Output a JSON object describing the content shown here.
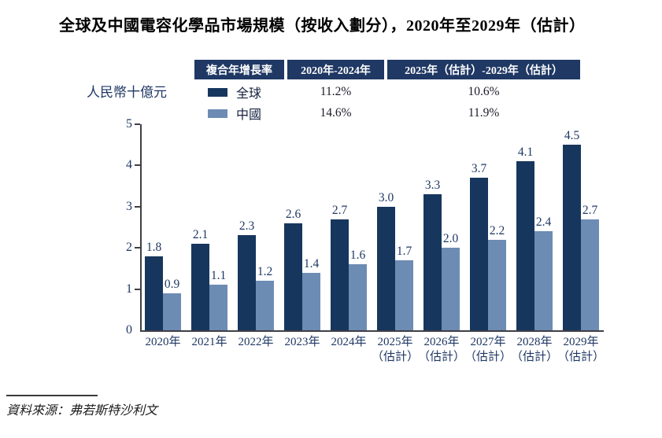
{
  "page": {
    "title": "全球及中國電容化學品市場規模（按收入劃分），2020年至2029年（估計）",
    "source": "資料來源：弗若斯特沙利文"
  },
  "cagr_table": {
    "header": [
      "複合年增長率",
      "2020年-2024年",
      "2025年（估計）-2029年（估計）"
    ],
    "rows": [
      {
        "label": "全球",
        "period1": "11.2%",
        "period2": "10.6%"
      },
      {
        "label": "中國",
        "period1": "14.6%",
        "period2": "11.9%"
      }
    ]
  },
  "colors": {
    "table_header_bg": "#1F3864",
    "series_global": "#17365D",
    "series_china": "#6D8CB4",
    "axis": "#3f3f46",
    "numeral_text": "#1F3864",
    "title_text": "#000000"
  },
  "chart_data": {
    "type": "bar",
    "title": "全球及中國電容化學品市場規模（按收入劃分），2020年至2029年（估計）",
    "ylabel": "人民幣十億元",
    "xlabel": "",
    "ylim": [
      0,
      5
    ],
    "yticks": [
      0,
      1,
      2,
      3,
      4,
      5
    ],
    "grid": false,
    "legend_position": "top",
    "value_label_decimals": 1,
    "categories": [
      [
        "2020年"
      ],
      [
        "2021年"
      ],
      [
        "2022年"
      ],
      [
        "2023年"
      ],
      [
        "2024年"
      ],
      [
        "2025年",
        "（估計）"
      ],
      [
        "2026年",
        "（估計）"
      ],
      [
        "2027年",
        "（估計）"
      ],
      [
        "2028年",
        "（估計）"
      ],
      [
        "2029年",
        "（估計）"
      ]
    ],
    "series": [
      {
        "name": "全球",
        "color": "#17365D",
        "values": [
          1.8,
          2.1,
          2.3,
          2.6,
          2.7,
          3.0,
          3.3,
          3.7,
          4.1,
          4.5
        ],
        "cagr_2020_2024": "11.2%",
        "cagr_2025e_2029e": "10.6%"
      },
      {
        "name": "中國",
        "color": "#6D8CB4",
        "values": [
          0.9,
          1.1,
          1.2,
          1.4,
          1.6,
          1.7,
          2.0,
          2.2,
          2.4,
          2.7
        ],
        "cagr_2020_2024": "14.6%",
        "cagr_2025e_2029e": "11.9%"
      }
    ]
  }
}
